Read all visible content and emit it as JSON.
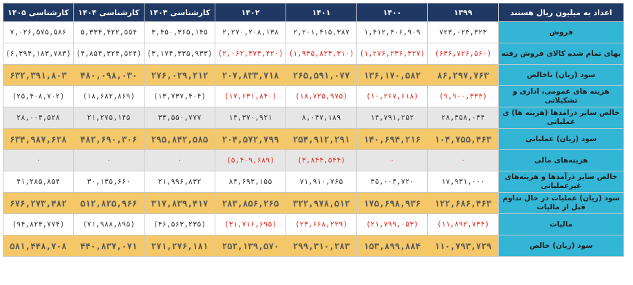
{
  "table": {
    "headers": [
      "اعداد به میلیون ریال هستند",
      "۱۳۹۹",
      "۱۴۰۰",
      "۱۴۰۱",
      "۱۴۰۲",
      "کارشناسی ۱۴۰۳",
      "کارشناسی ۱۴۰۴",
      "کارشناسی ۱۴۰۵"
    ],
    "rows": [
      {
        "style": "white",
        "label": "فروش",
        "values": [
          "۷۲۳,۰۲۴,۳۲۳",
          "۱,۴۱۲,۴۰۶,۹۰۹",
          "۲,۲۰۱,۴۱۵,۳۸۷",
          "۲,۲۷۰,۲۰۸,۱۳۸",
          "۳,۴۵۰,۳۶۵,۱۴۵",
          "۵,۳۳۴,۴۲۲,۵۵۴",
          "۷,۰۲۶,۵۷۵,۵۸۶"
        ],
        "negative": [
          false,
          false,
          false,
          false,
          false,
          false,
          false
        ]
      },
      {
        "style": "white",
        "label": "بهای تمام شده کالای فروش رفته",
        "values": [
          "(۶۳۶,۷۲۶,۵۶۰)",
          "(۱,۲۷۶,۲۳۶,۳۲۷)",
          "(۱,۹۳۵,۸۲۴,۳۱۰)",
          "(۲,۰۶۲,۳۷۴,۴۲۰)",
          "(۳,۱۷۴,۳۳۵,۹۳۳)",
          "(۴,۸۵۴,۳۲۴,۵۲۴)",
          "(۶,۳۹۴,۱۸۳,۷۸۳)"
        ],
        "negative": [
          true,
          true,
          true,
          true,
          false,
          false,
          false
        ]
      },
      {
        "style": "gold",
        "label": "سود (زیان) ناخالص",
        "values": [
          "۸۶,۲۹۷,۷۶۳",
          "۱۳۶,۱۷۰,۵۸۲",
          "۲۶۵,۵۹۱,۰۷۷",
          "۲۰۷,۸۳۳,۷۱۸",
          "۲۷۶,۰۲۹,۲۱۲",
          "۴۸۰,۰۹۸,۰۳۰",
          "۶۳۲,۳۹۱,۸۰۳"
        ],
        "negative": [
          false,
          false,
          false,
          false,
          false,
          false,
          false
        ]
      },
      {
        "style": "white",
        "label": "هزینه های عمومی، اداری و تشکیلاتی",
        "values": [
          "(۹,۹۰۰,۳۳۴)",
          "(۱۰,۲۶۷,۶۱۸)",
          "(۱۸,۷۲۵,۹۷۵)",
          "(۱۷,۶۳۱,۸۴۰)",
          "(۱۳,۷۳۷,۴۰۴)",
          "(۱۸,۶۸۲,۸۶۹)",
          "(۲۵,۴۰۸,۷۰۲)"
        ],
        "negative": [
          true,
          true,
          true,
          true,
          false,
          false,
          false
        ]
      },
      {
        "style": "gray",
        "label": "خالص سایر درامدها (هزینه ها) ی عملیاتی",
        "values": [
          "۲۸,۳۵۸,۰۳۴",
          "۱۴,۷۹۱,۲۵۲",
          "۸,۰۴۷,۱۸۹",
          "۱۴,۳۷۰,۹۲۱",
          "۳۳,۵۵۰,۷۷۷",
          "۲۱,۲۷۵,۱۴۵",
          "۲۸,۰۰۴,۵۲۸"
        ],
        "negative": [
          false,
          false,
          false,
          false,
          false,
          false,
          false
        ]
      },
      {
        "style": "gold",
        "label": "سود (زیان) عملیاتی",
        "values": [
          "۱۰۴,۷۵۵,۴۶۳",
          "۱۴۰,۶۹۴,۲۱۶",
          "۲۵۴,۹۱۲,۲۹۱",
          "۲۰۴,۵۷۲,۷۹۹",
          "۲۹۵,۸۴۲,۵۸۵",
          "۴۸۲,۶۹۰,۳۰۶",
          "۶۳۴,۹۸۷,۶۲۸"
        ],
        "negative": [
          false,
          false,
          false,
          false,
          false,
          false,
          false
        ]
      },
      {
        "style": "gray",
        "label": "هزینه‌های مالی",
        "values": [
          "۰",
          "۰",
          "(۳,۸۴۴,۵۴۴)",
          "(۵,۴۰۹,۶۸۹)",
          "۰",
          "۰",
          "۰"
        ],
        "negative": [
          true,
          true,
          true,
          true,
          false,
          false,
          false
        ]
      },
      {
        "style": "white",
        "label": "خالص سایر درآمدها و هزینه‌های غیرعملیاتی",
        "values": [
          "۱۷,۹۳۱,۰۰۰",
          "۳۵,۰۰۴,۷۲۰",
          "۷۱,۹۱۰,۷۶۵",
          "۸۴,۶۹۳,۱۵۵",
          "۲۱,۹۹۶,۸۳۲",
          "۳۰,۱۳۵,۶۶۰",
          "۴۱,۲۸۵,۸۵۴"
        ],
        "negative": [
          false,
          false,
          false,
          false,
          false,
          false,
          false
        ]
      },
      {
        "style": "gold",
        "label": "سود (زیان) عملیات در حال تداوم قبل از مالیات",
        "values": [
          "۱۲۲,۶۸۶,۴۶۳",
          "۱۷۵,۶۹۸,۹۳۶",
          "۳۲۲,۹۷۸,۵۱۲",
          "۲۸۳,۸۵۶,۲۶۵",
          "۳۱۷,۸۳۹,۴۱۷",
          "۵۱۲,۸۲۵,۹۶۶",
          "۶۷۶,۲۷۳,۴۸۲"
        ],
        "negative": [
          false,
          false,
          false,
          false,
          false,
          false,
          false
        ]
      },
      {
        "style": "white",
        "label": "مالیات",
        "values": [
          "(۱۱,۸۹۲,۷۳۴)",
          "(۲۱,۷۹۹,۰۵۳)",
          "(۲۳,۶۶۸,۲۲۹)",
          "(۳۱,۷۱۶,۶۹۵)",
          "(۴۶,۵۶۳,۲۳۵)",
          "(۷۱,۹۸۸,۸۹۵)",
          "(۹۴,۸۲۴,۷۷۴)"
        ],
        "negative": [
          true,
          true,
          true,
          true,
          false,
          false,
          false
        ]
      },
      {
        "style": "gold",
        "label": "سود (زیان) خالص",
        "values": [
          "۱۱۰,۷۹۳,۷۲۹",
          "۱۵۳,۸۹۹,۸۸۴",
          "۲۹۹,۳۱۰,۲۸۳",
          "۲۵۲,۱۳۹,۵۷۰",
          "۲۷۱,۲۷۶,۱۸۱",
          "۴۴۰,۸۳۷,۰۷۱",
          "۵۸۱,۴۴۸,۷۰۸"
        ],
        "negative": [
          false,
          false,
          false,
          false,
          false,
          false,
          false
        ]
      }
    ],
    "colors": {
      "header_bg": "#1f3864",
      "label_bg": "#33b5d6",
      "gold_row": "#f4c768",
      "gray_row": "#e6e6e6",
      "negative_text": "#e0251b"
    }
  }
}
